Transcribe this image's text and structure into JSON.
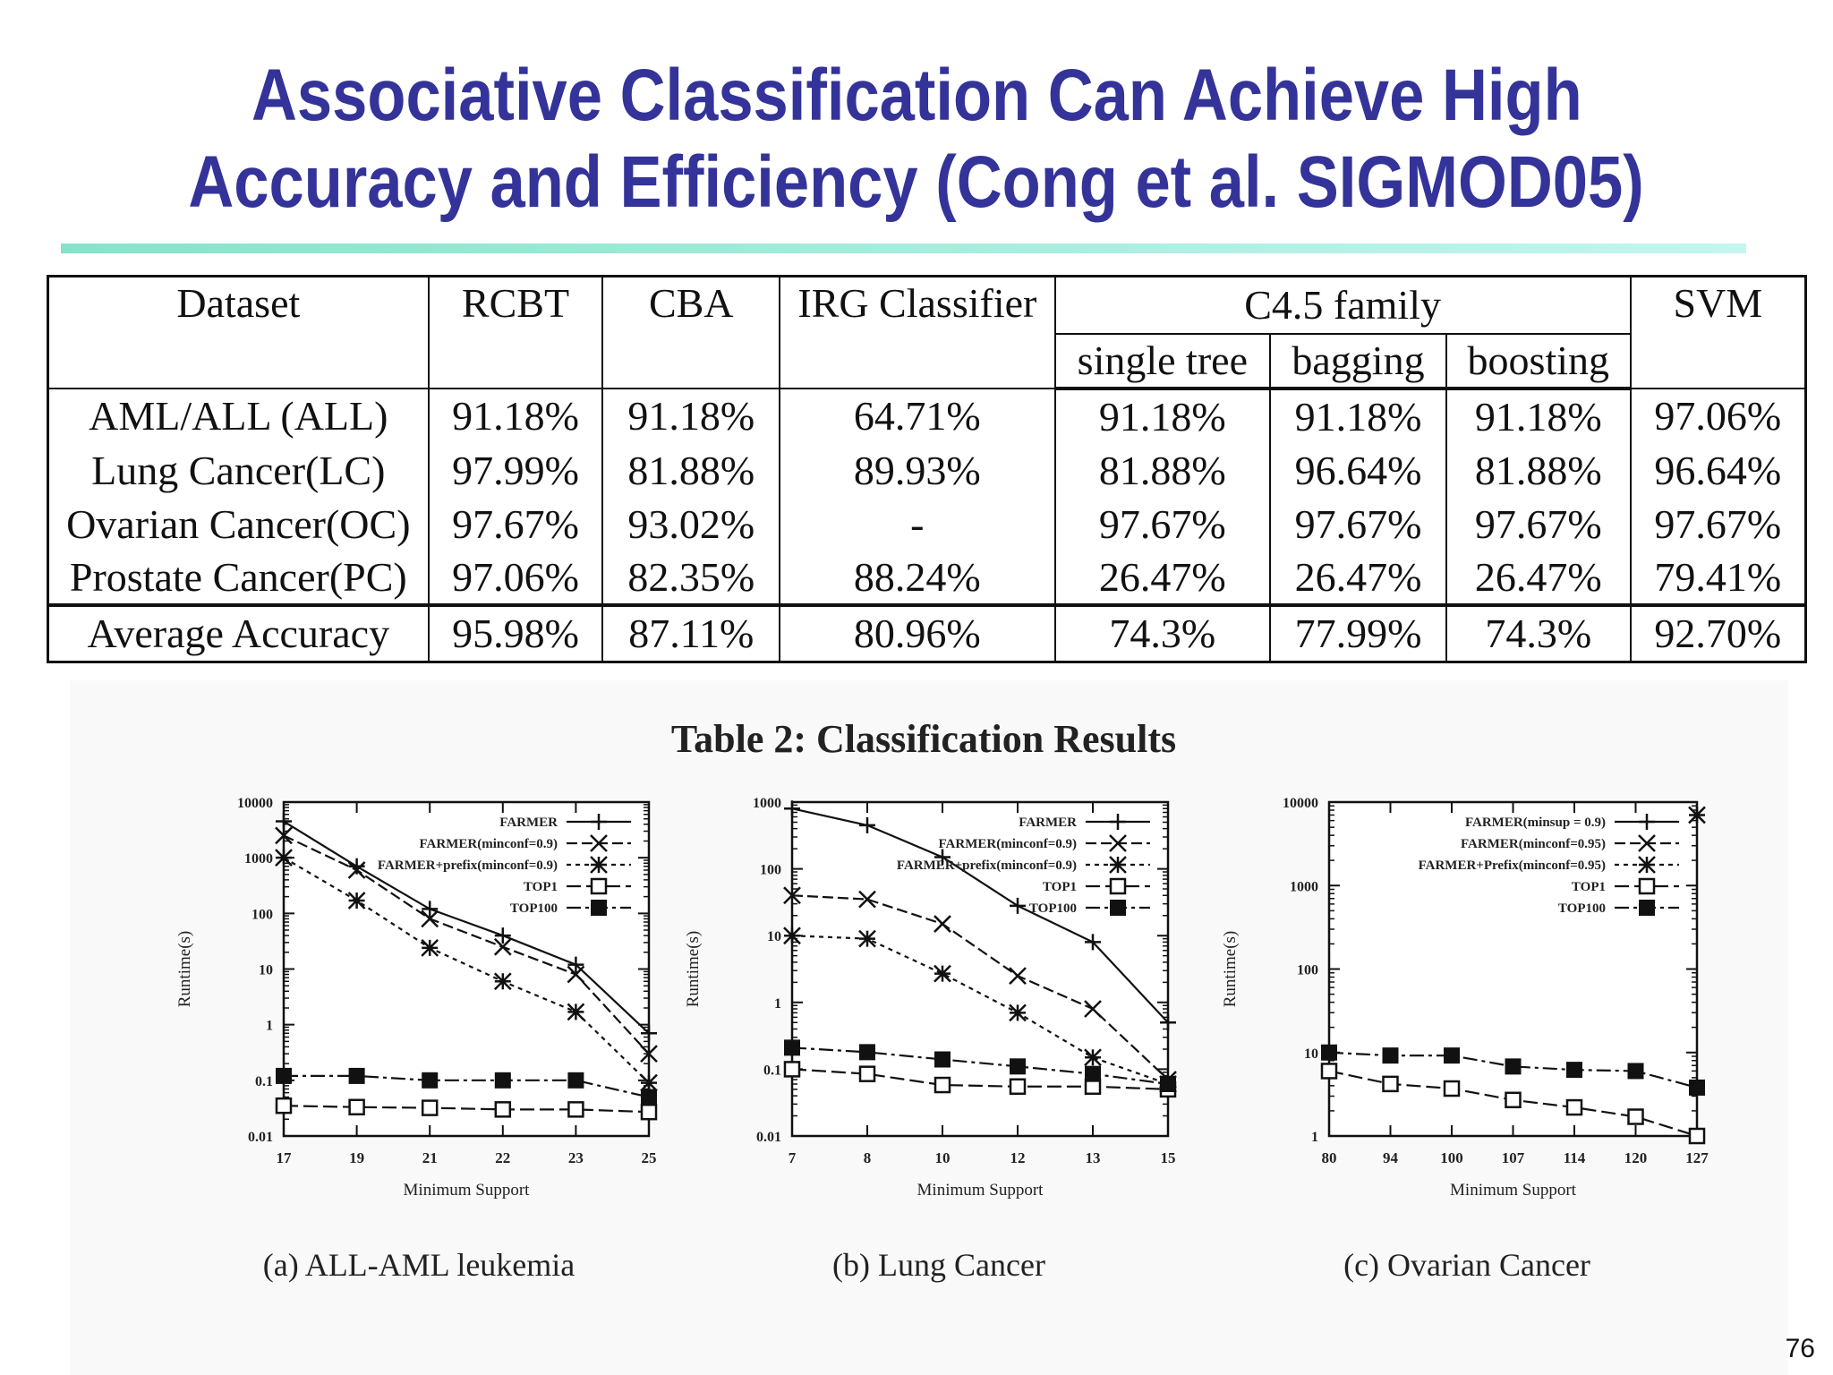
{
  "slide": {
    "title_line1": "Associative Classification Can Achieve High",
    "title_line2": "Accuracy and Efficiency (Cong et al. SIGMOD05)",
    "page_number": "76",
    "title_color": "#333399",
    "rule_color": "#86e3c9"
  },
  "table": {
    "header": {
      "dataset": "Dataset",
      "rcbt": "RCBT",
      "cba": "CBA",
      "irg": "IRG Classifier",
      "c45": "C4.5 family",
      "svm": "SVM",
      "single_tree": "single tree",
      "bagging": "bagging",
      "boosting": "boosting"
    },
    "rows": [
      {
        "dataset": "AML/ALL (ALL)",
        "values": [
          "91.18%",
          "91.18%",
          "64.71%",
          "91.18%",
          "91.18%",
          "91.18%",
          "97.06%"
        ]
      },
      {
        "dataset": "Lung Cancer(LC)",
        "values": [
          "97.99%",
          "81.88%",
          "89.93%",
          "81.88%",
          "96.64%",
          "81.88%",
          "96.64%"
        ]
      },
      {
        "dataset": "Ovarian Cancer(OC)",
        "values": [
          "97.67%",
          "93.02%",
          "-",
          "97.67%",
          "97.67%",
          "97.67%",
          "97.67%"
        ]
      },
      {
        "dataset": "Prostate Cancer(PC)",
        "values": [
          "97.06%",
          "82.35%",
          "88.24%",
          "26.47%",
          "26.47%",
          "26.47%",
          "79.41%"
        ]
      }
    ],
    "average": {
      "dataset": "Average Accuracy",
      "values": [
        "95.98%",
        "87.11%",
        "80.96%",
        "74.3%",
        "77.99%",
        "74.3%",
        "92.70%"
      ]
    },
    "caption": "Table 2: Classification Results"
  },
  "chart_data": [
    {
      "type": "line",
      "caption": "(a) ALL-AML leukemia",
      "xlabel": "Minimum Support",
      "ylabel": "Runtime(s)",
      "x": [
        "17",
        "19",
        "21",
        "22",
        "23",
        "25"
      ],
      "yscale": "log",
      "ylim": [
        0.01,
        10000
      ],
      "yticks": [
        "0.01",
        "0.1",
        "1",
        "10",
        "100",
        "1000",
        "10000"
      ],
      "legend": "top-right",
      "series": [
        {
          "name": "FARMER",
          "marker": "plus",
          "values": [
            4500,
            700,
            120,
            40,
            12,
            0.7
          ]
        },
        {
          "name": "FARMER(minconf=0.9)",
          "marker": "cross",
          "values": [
            2500,
            600,
            80,
            25,
            8,
            0.3
          ]
        },
        {
          "name": "FARMER+prefix(minconf=0.9)",
          "marker": "asterisk",
          "values": [
            1000,
            170,
            24,
            6,
            1.7,
            0.09
          ]
        },
        {
          "name": "TOP1",
          "marker": "open-square",
          "values": [
            0.035,
            0.033,
            0.032,
            0.03,
            0.03,
            0.027
          ]
        },
        {
          "name": "TOP100",
          "marker": "filled-square",
          "values": [
            0.12,
            0.12,
            0.1,
            0.1,
            0.1,
            0.05
          ]
        }
      ]
    },
    {
      "type": "line",
      "caption": "(b) Lung Cancer",
      "xlabel": "Minimum Support",
      "ylabel": "Runtime(s)",
      "x": [
        "7",
        "8",
        "10",
        "12",
        "13",
        "15"
      ],
      "yscale": "log",
      "ylim": [
        0.01,
        1000
      ],
      "yticks": [
        "0.01",
        "0.1",
        "1",
        "10",
        "100",
        "1000"
      ],
      "legend": "top-right",
      "series": [
        {
          "name": "FARMER",
          "marker": "plus",
          "values": [
            800,
            450,
            150,
            28,
            8,
            0.5
          ]
        },
        {
          "name": "FARMER(minconf=0.9)",
          "marker": "cross",
          "values": [
            40,
            35,
            15,
            2.5,
            0.8,
            0.07
          ]
        },
        {
          "name": "FARMER+prefix(minconf=0.9)",
          "marker": "asterisk",
          "values": [
            10,
            9,
            2.7,
            0.7,
            0.15,
            0.06
          ]
        },
        {
          "name": "TOP1",
          "marker": "open-square",
          "values": [
            0.1,
            0.085,
            0.058,
            0.055,
            0.055,
            0.05
          ]
        },
        {
          "name": "TOP100",
          "marker": "filled-square",
          "values": [
            0.21,
            0.18,
            0.14,
            0.11,
            0.085,
            0.06
          ]
        }
      ]
    },
    {
      "type": "line",
      "caption": "(c) Ovarian Cancer",
      "xlabel": "Minimum Support",
      "ylabel": "Runtime(s)",
      "x": [
        "80",
        "94",
        "100",
        "107",
        "114",
        "120",
        "127"
      ],
      "yscale": "log",
      "ylim": [
        1,
        10000
      ],
      "yticks": [
        "1",
        "10",
        "100",
        "1000",
        "10000"
      ],
      "legend": "top-right",
      "series": [
        {
          "name": "FARMER(minsup = 0.9)",
          "marker": "plus",
          "values": [
            null,
            null,
            null,
            null,
            null,
            null,
            null
          ]
        },
        {
          "name": "FARMER(minconf=0.95)",
          "marker": "cross",
          "values": [
            null,
            null,
            null,
            null,
            null,
            null,
            null
          ]
        },
        {
          "name": "FARMER+Prefix(minconf=0.95)",
          "marker": "asterisk",
          "values": [
            null,
            null,
            null,
            null,
            null,
            null,
            7000
          ]
        },
        {
          "name": "TOP1",
          "marker": "open-square",
          "values": [
            6,
            4.2,
            3.7,
            2.7,
            2.2,
            1.7,
            1.0
          ]
        },
        {
          "name": "TOP100",
          "marker": "filled-square",
          "values": [
            10,
            9.2,
            9.2,
            6.8,
            6.2,
            6,
            3.8
          ]
        }
      ]
    }
  ]
}
